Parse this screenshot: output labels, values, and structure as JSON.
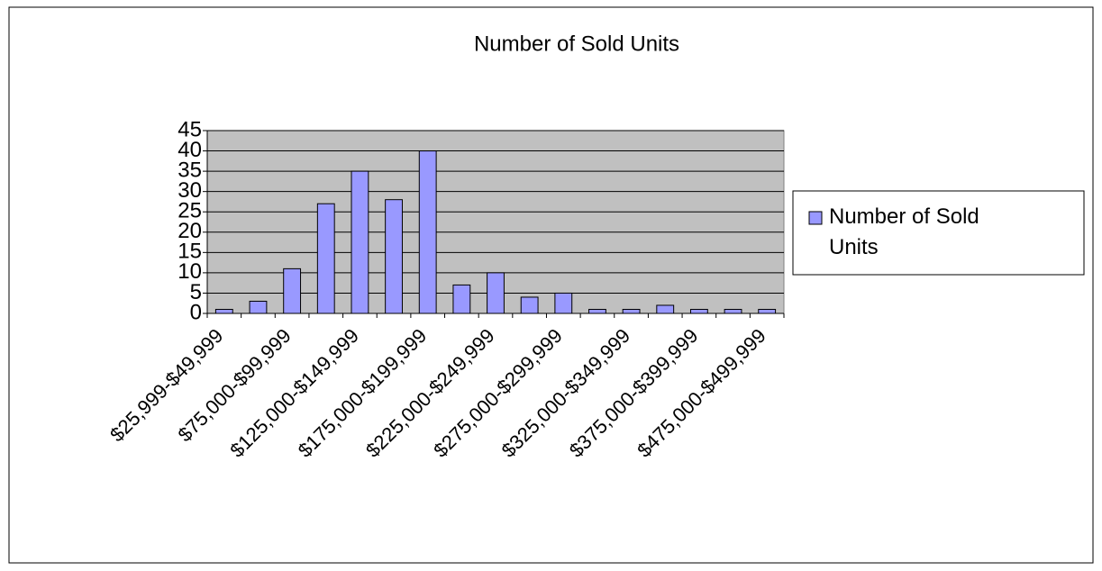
{
  "chart_data": {
    "type": "bar",
    "title": "Number of Sold Units",
    "categories": [
      "$25,999-$49,999",
      null,
      "$75,000-$99,999",
      null,
      "$125,000-$149,999",
      null,
      "$175,000-$199,999",
      null,
      "$225,000-$249,999",
      null,
      "$275,000-$299,999",
      null,
      "$325,000-$349,999",
      null,
      "$375,000-$399,999",
      null,
      "$475,000-$499,999"
    ],
    "series": [
      {
        "name": "Number of Sold Units",
        "color": "#9999ff",
        "values": [
          1,
          3,
          11,
          27,
          35,
          28,
          40,
          7,
          10,
          4,
          5,
          1,
          1,
          2,
          1,
          1,
          1
        ]
      }
    ],
    "ylim": [
      0,
      45
    ],
    "yticks": [
      0,
      5,
      10,
      15,
      20,
      25,
      30,
      35,
      40,
      45
    ],
    "grid": true,
    "legend": "right"
  }
}
